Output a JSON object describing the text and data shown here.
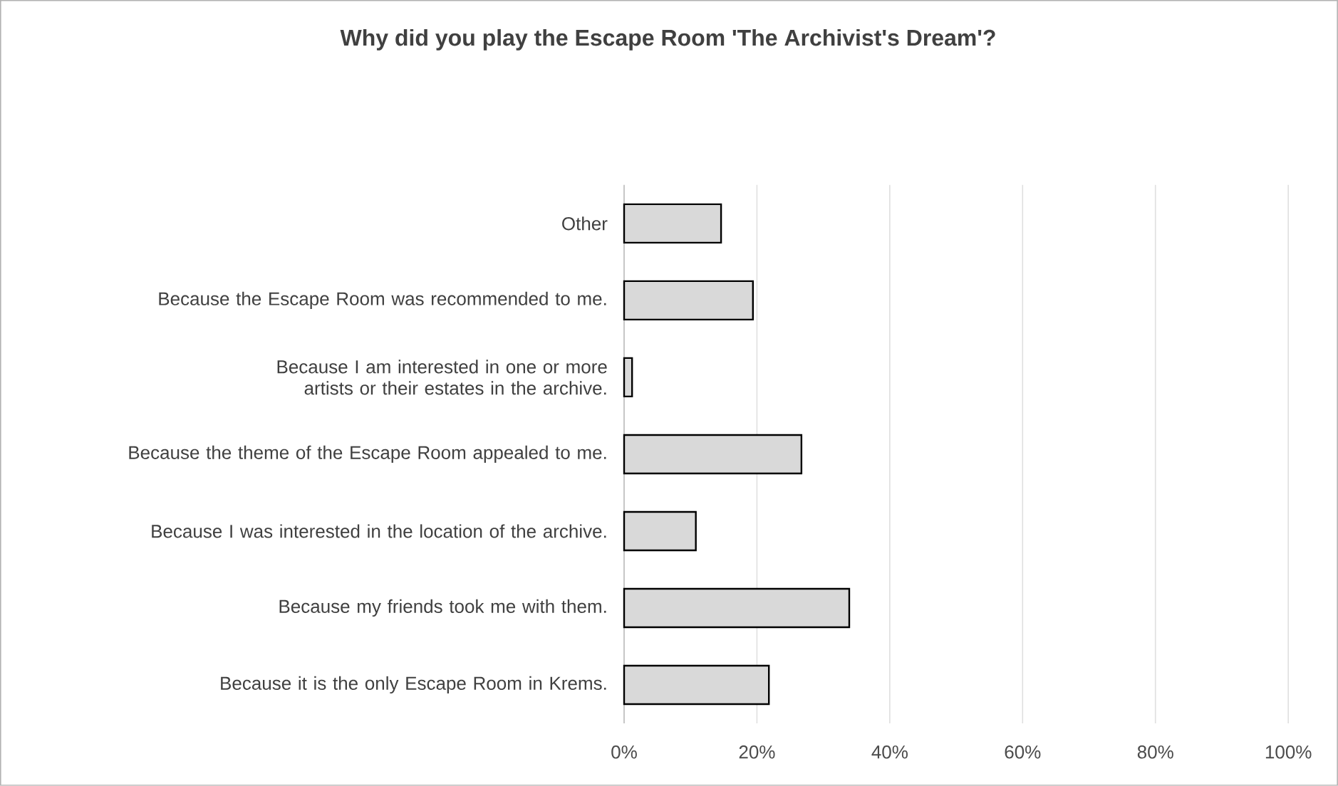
{
  "chart_data": {
    "type": "bar",
    "orientation": "horizontal",
    "title": "Why did you play the Escape Room 'The Archivist's Dream'?",
    "categories": [
      "Other",
      "Because the Escape Room was recommended to me.",
      "Because I am interested in one or more artists or their estates in the archive.",
      "Because the theme of the Escape Room appealed to me.",
      "Because I was interested in the location of the archive.",
      "Because my friends took me with them.",
      "Because it is the only Escape Room in Krems."
    ],
    "values": [
      14.6,
      19.4,
      1.2,
      26.7,
      10.8,
      33.9,
      21.8
    ],
    "color": "#d9d9d9",
    "xlim": [
      0,
      100
    ],
    "xticks": [
      {
        "value": 0,
        "label": "0%"
      },
      {
        "value": 20,
        "label": "20%"
      },
      {
        "value": 40,
        "label": "40%"
      },
      {
        "value": 60,
        "label": "60%"
      },
      {
        "value": 80,
        "label": "80%"
      },
      {
        "value": 100,
        "label": "100%"
      }
    ],
    "grid": "x"
  }
}
